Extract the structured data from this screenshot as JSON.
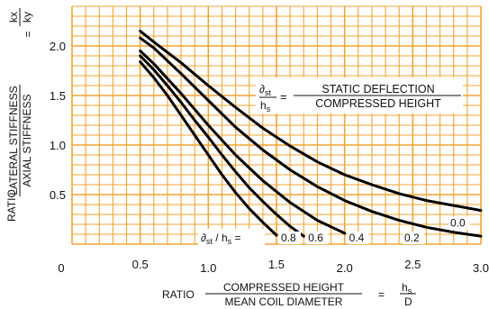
{
  "chart_data": {
    "type": "line",
    "grid": true,
    "grid_color": "#F4A430",
    "curve_color": "#000000",
    "xlim": [
      0.0,
      3.0
    ],
    "ylim": [
      0.0,
      2.4
    ],
    "x_ticks": [
      "0",
      "0.5",
      "1.0",
      "1.5",
      "2.0",
      "2.5",
      "3.0"
    ],
    "y_ticks": [
      "0.5",
      "1.0",
      "1.5",
      "2.0"
    ],
    "ylabel": {
      "ratio": "RATIO",
      "numerator": "LATERAL STIFFNESS",
      "denominator": "AXIAL STIFFNESS",
      "equals": "=",
      "k_num": "kx",
      "k_den": "ky"
    },
    "xlabel": {
      "ratio": "RATIO",
      "numerator": "COMPRESSED HEIGHT",
      "denominator": "MEAN COIL DIAMETER",
      "equals": "=",
      "h_num": "h",
      "h_sub": "s",
      "h_den": "D"
    },
    "annotation": {
      "num_sym": "∂",
      "num_sub": "st",
      "den_sym": "h",
      "den_sub": "s",
      "equals": "=",
      "numerator": "STATIC DEFLECTION",
      "denominator": "COMPRESSED HEIGHT"
    },
    "curve_legend": {
      "sym": "∂",
      "sub": "st",
      "slash": " / h",
      "sub2": "s",
      "equals": " ="
    },
    "series": [
      {
        "name": "0.8",
        "x": [
          0.5,
          0.6,
          0.7,
          0.8,
          0.9,
          1.0,
          1.1,
          1.2,
          1.3,
          1.4,
          1.5
        ],
        "y": [
          1.84,
          1.68,
          1.5,
          1.3,
          1.1,
          0.9,
          0.7,
          0.52,
          0.36,
          0.22,
          0.09
        ]
      },
      {
        "name": "0.6",
        "x": [
          0.5,
          0.6,
          0.7,
          0.8,
          0.9,
          1.0,
          1.1,
          1.2,
          1.3,
          1.4,
          1.5,
          1.6,
          1.7
        ],
        "y": [
          1.9,
          1.76,
          1.6,
          1.43,
          1.25,
          1.08,
          0.9,
          0.73,
          0.57,
          0.43,
          0.3,
          0.18,
          0.08
        ]
      },
      {
        "name": "0.4",
        "x": [
          0.5,
          0.6,
          0.8,
          1.0,
          1.2,
          1.4,
          1.6,
          1.8,
          2.0
        ],
        "y": [
          1.95,
          1.82,
          1.52,
          1.2,
          0.9,
          0.64,
          0.42,
          0.24,
          0.11
        ]
      },
      {
        "name": "0.2",
        "x": [
          0.5,
          0.6,
          0.8,
          1.0,
          1.2,
          1.4,
          1.6,
          1.8,
          2.0,
          2.2,
          2.4,
          2.6,
          2.8,
          3.0
        ],
        "y": [
          2.08,
          1.98,
          1.72,
          1.45,
          1.18,
          0.95,
          0.75,
          0.58,
          0.44,
          0.33,
          0.24,
          0.17,
          0.12,
          0.08
        ]
      },
      {
        "name": "0.0",
        "x": [
          0.5,
          0.6,
          0.8,
          1.0,
          1.2,
          1.4,
          1.6,
          1.8,
          2.0,
          2.2,
          2.4,
          2.6,
          2.8,
          3.0
        ],
        "y": [
          2.15,
          2.04,
          1.83,
          1.6,
          1.38,
          1.17,
          0.99,
          0.83,
          0.7,
          0.6,
          0.51,
          0.44,
          0.39,
          0.34
        ]
      }
    ]
  }
}
